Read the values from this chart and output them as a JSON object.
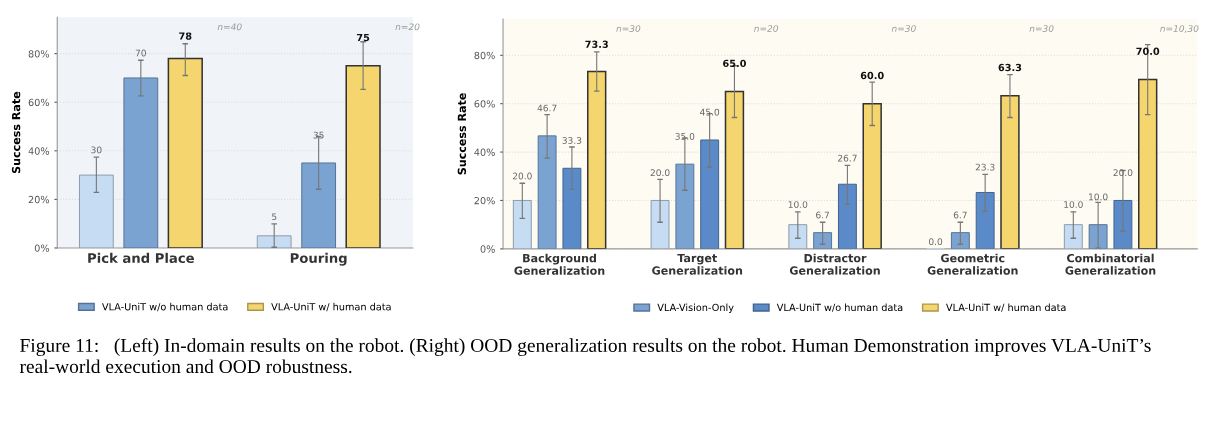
{
  "chart_data": [
    {
      "type": "bar",
      "ylabel": "Success Rate",
      "categories": [
        "Pick and Place",
        "Pouring"
      ],
      "series": [
        {
          "color": "#c6dcf2",
          "values": [
            30,
            5
          ],
          "errors": [
            [
              22.9,
              37.4
            ],
            [
              0.3,
              9.9
            ]
          ],
          "value_labels": [
            "30",
            "5"
          ]
        },
        {
          "name": "VLA-UniT w/o human data",
          "color": "#7aa3d2",
          "values": [
            70,
            35
          ],
          "errors": [
            [
              62.6,
              77.3
            ],
            [
              24.2,
              45.9
            ]
          ],
          "value_labels": [
            "70",
            "35"
          ]
        },
        {
          "name": "VLA-UniT w/ human data",
          "color": "#f5d56d",
          "values": [
            78,
            75
          ],
          "errors": [
            [
              71,
              84.1
            ],
            [
              65.3,
              84.9
            ]
          ],
          "value_labels": [
            "78",
            "75"
          ]
        }
      ],
      "ylim": [
        0,
        95
      ],
      "yticks": [
        {
          "value": 0,
          "label": "0%"
        },
        {
          "value": 20,
          "label": "20%"
        },
        {
          "value": 40,
          "label": "40%"
        },
        {
          "value": 60,
          "label": "60%"
        },
        {
          "value": 80,
          "label": "80%"
        }
      ],
      "grid": "y",
      "legend": "bottom",
      "annotations": [
        "n=40",
        "n=20",
        "Figure 11:   (Left) In-domain results on the robot. (Right) OOD generalization results on the robot. Human Demonstration improves VLA-UniT’s real-world execution and OOD robustness."
      ]
    },
    {
      "type": "bar",
      "ylabel": "Success Rate",
      "categories": [
        "Background\nGeneralization",
        "Target\nGeneralization",
        "Distractor\nGeneralization",
        "Geometric\nGeneralization",
        "Combinatorial\nGeneralization"
      ],
      "series": [
        {
          "color": "#c6dcf2",
          "values": [
            20,
            20,
            10,
            0,
            10
          ],
          "errors": [
            [
              12.6,
              27.1
            ],
            [
              11.0,
              28.7
            ],
            [
              4.4,
              15.3
            ],
            null,
            [
              4.4,
              15.3
            ]
          ],
          "value_labels": [
            "20.0",
            "20.0",
            "10.0",
            "0.0",
            "10.0"
          ]
        },
        {
          "name": "VLA-Vision-Only",
          "color": "#7aa3d2",
          "values": [
            46.7,
            35,
            6.7,
            6.7,
            10
          ],
          "errors": [
            [
              37.5,
              55.5
            ],
            [
              24.2,
              45.8
            ],
            [
              1.9,
              11.0
            ],
            [
              1.9,
              11.0
            ],
            [
              0.3,
              19.2
            ]
          ],
          "value_labels": [
            "46.7",
            "35.0",
            "6.7",
            "6.7",
            "10.0"
          ]
        },
        {
          "name": "VLA-UniT w/o human data",
          "color": "#5a8ac8",
          "values": [
            33.3,
            45,
            26.7,
            23.3,
            20
          ],
          "errors": [
            [
              24.6,
              42.1
            ],
            [
              33.7,
              55.9
            ],
            [
              18.4,
              34.5
            ],
            [
              15.5,
              30.8
            ],
            [
              7.3,
              32.4
            ]
          ],
          "value_labels": [
            "33.3",
            "45.0",
            "26.7",
            "23.3",
            "20.0"
          ]
        },
        {
          "name": "VLA-UniT w/ human data",
          "color": "#f5d56d",
          "values": [
            73.3,
            65,
            60,
            63.3,
            70
          ],
          "errors": [
            [
              65.2,
              81.4
            ],
            [
              54.3,
              75.7
            ],
            [
              51.0,
              68.9
            ],
            [
              54.3,
              72.0
            ],
            [
              55.5,
              84.4
            ]
          ],
          "value_labels": [
            "73.3",
            "65.0",
            "60.0",
            "63.3",
            "70.0"
          ]
        }
      ],
      "ylim": [
        0,
        95
      ],
      "yticks": [
        {
          "value": 0,
          "label": "0%"
        },
        {
          "value": 20,
          "label": "20%"
        },
        {
          "value": 40,
          "label": "40%"
        },
        {
          "value": 60,
          "label": "60%"
        },
        {
          "value": 80,
          "label": "80%"
        }
      ],
      "grid": "y",
      "legend": "bottom",
      "annotations": [
        "n=30",
        "n=20",
        "n=30",
        "n=30",
        "n=10,30"
      ]
    }
  ]
}
